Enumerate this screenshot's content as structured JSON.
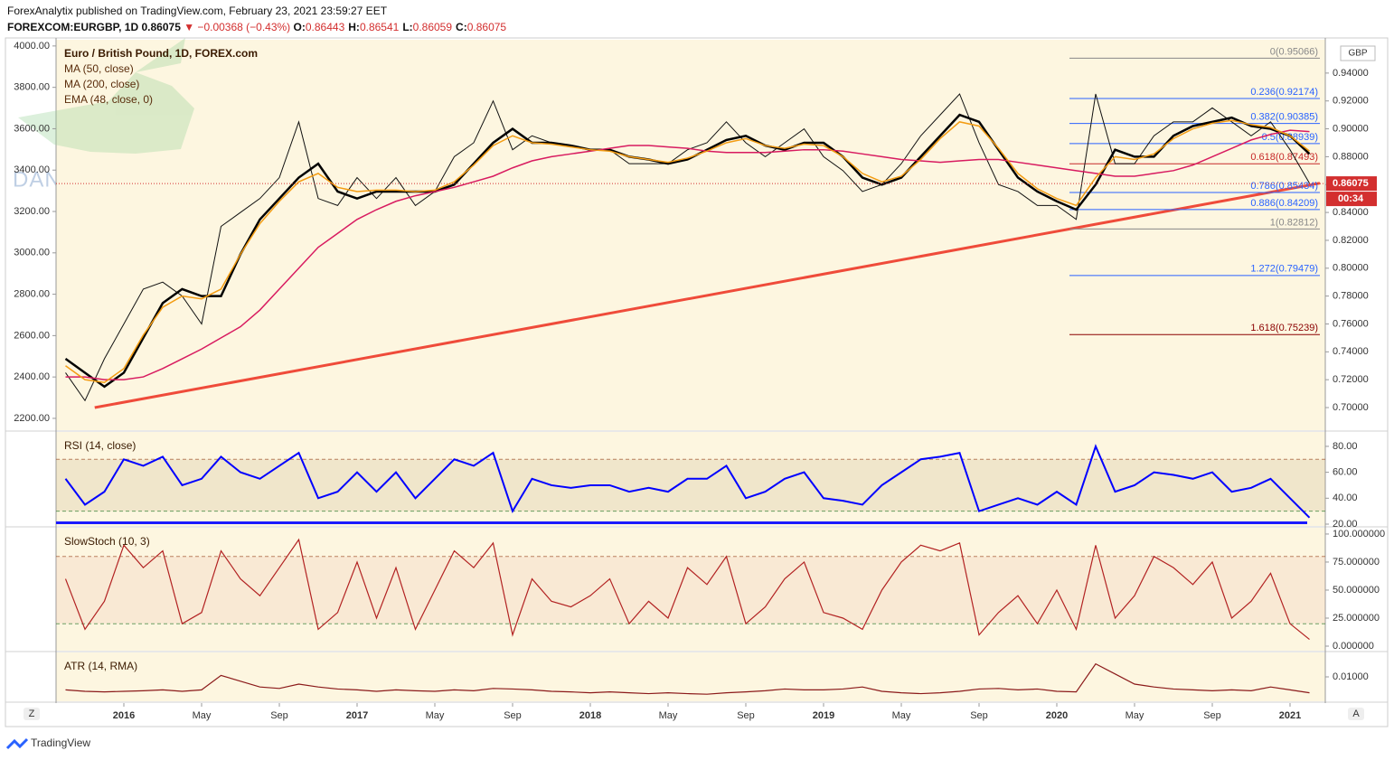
{
  "header": {
    "publisher": "ForexAnalytix published on TradingView.com, February 23, 2021 23:59:27 EET",
    "symbol": "FOREXCOM:EURGBP, 1D",
    "last": "0.86075",
    "change": "▼ −0.00368 (−0.43%)",
    "ohlc": [
      [
        "O:",
        "0.86443"
      ],
      [
        "H:",
        "0.86541"
      ],
      [
        "L:",
        "0.86059"
      ],
      [
        "C:",
        "0.86075"
      ]
    ]
  },
  "watermark": "DANHGIASAN.COM",
  "footer": {
    "brand": "TradingView",
    "left_button": "Z",
    "right_button": "A"
  },
  "chart_data": [
    {
      "type": "line",
      "title": "Euro / British Pound, 1D, FOREX.com",
      "axis_unit": "GBP",
      "categories": [
        null,
        null,
        null,
        "2016",
        null,
        null,
        null,
        "May",
        null,
        null,
        null,
        "Sep",
        null,
        null,
        null,
        "2017",
        null,
        null,
        null,
        "May",
        null,
        null,
        null,
        "Sep",
        null,
        null,
        null,
        "2018",
        null,
        null,
        null,
        "May",
        null,
        null,
        null,
        "Sep",
        null,
        null,
        null,
        "2019",
        null,
        null,
        null,
        "May",
        null,
        null,
        null,
        "Sep",
        null,
        null,
        null,
        "2020",
        null,
        null,
        null,
        "May",
        null,
        null,
        null,
        "Sep",
        null,
        null,
        null,
        "2021",
        null
      ],
      "values": [
        0.725,
        0.705,
        0.735,
        0.76,
        0.785,
        0.79,
        0.78,
        0.76,
        0.83,
        0.84,
        0.85,
        0.865,
        0.905,
        0.85,
        0.845,
        0.865,
        0.85,
        0.865,
        0.845,
        0.855,
        0.88,
        0.89,
        0.92,
        0.885,
        0.895,
        0.89,
        0.888,
        0.885,
        0.885,
        0.875,
        0.875,
        0.875,
        0.885,
        0.89,
        0.905,
        0.89,
        0.88,
        0.89,
        0.9,
        0.88,
        0.87,
        0.855,
        0.86,
        0.875,
        0.895,
        0.91,
        0.925,
        0.89,
        0.86,
        0.855,
        0.845,
        0.845,
        0.835,
        0.925,
        0.875,
        0.875,
        0.895,
        0.905,
        0.905,
        0.915,
        0.905,
        0.895,
        0.905,
        0.885,
        0.861
      ],
      "color": "#111111",
      "series": [
        {
          "name": "MA (50, close)",
          "color": "#000000",
          "width": 2.5,
          "values": [
            0.735,
            0.725,
            0.715,
            0.725,
            0.75,
            0.775,
            0.785,
            0.78,
            0.78,
            0.81,
            0.835,
            0.85,
            0.865,
            0.875,
            0.855,
            0.85,
            0.855,
            0.855,
            0.855,
            0.855,
            0.86,
            0.875,
            0.89,
            0.9,
            0.89,
            0.89,
            0.888,
            0.885,
            0.885,
            0.88,
            0.878,
            0.875,
            0.878,
            0.885,
            0.892,
            0.895,
            0.888,
            0.885,
            0.89,
            0.89,
            0.88,
            0.865,
            0.86,
            0.865,
            0.88,
            0.895,
            0.91,
            0.905,
            0.885,
            0.865,
            0.855,
            0.848,
            0.842,
            0.86,
            0.885,
            0.88,
            0.88,
            0.895,
            0.902,
            0.905,
            0.908,
            0.902,
            0.9,
            0.895,
            0.882
          ]
        },
        {
          "name": "MA (200, close)",
          "color": "#d81b60",
          "width": 1.5,
          "values": [
            0.722,
            0.722,
            0.72,
            0.72,
            0.722,
            0.728,
            0.735,
            0.742,
            0.75,
            0.758,
            0.77,
            0.785,
            0.8,
            0.815,
            0.825,
            0.835,
            0.842,
            0.848,
            0.852,
            0.855,
            0.858,
            0.862,
            0.866,
            0.872,
            0.877,
            0.88,
            0.882,
            0.884,
            0.886,
            0.888,
            0.888,
            0.887,
            0.886,
            0.884,
            0.883,
            0.883,
            0.883,
            0.884,
            0.885,
            0.885,
            0.884,
            0.882,
            0.88,
            0.878,
            0.877,
            0.876,
            0.877,
            0.878,
            0.878,
            0.876,
            0.874,
            0.872,
            0.87,
            0.868,
            0.866,
            0.866,
            0.868,
            0.87,
            0.874,
            0.88,
            0.886,
            0.892,
            0.896,
            0.899,
            0.898
          ]
        },
        {
          "name": "EMA (48, close, 0)",
          "color": "#f39c12",
          "width": 1.5,
          "values": [
            0.73,
            0.72,
            0.718,
            0.728,
            0.752,
            0.772,
            0.78,
            0.778,
            0.785,
            0.81,
            0.832,
            0.848,
            0.862,
            0.868,
            0.858,
            0.855,
            0.856,
            0.856,
            0.855,
            0.856,
            0.862,
            0.874,
            0.888,
            0.895,
            0.89,
            0.889,
            0.887,
            0.885,
            0.884,
            0.88,
            0.878,
            0.876,
            0.879,
            0.884,
            0.89,
            0.893,
            0.888,
            0.886,
            0.889,
            0.888,
            0.88,
            0.868,
            0.862,
            0.866,
            0.878,
            0.893,
            0.905,
            0.902,
            0.886,
            0.868,
            0.857,
            0.85,
            0.845,
            0.865,
            0.88,
            0.878,
            0.882,
            0.893,
            0.9,
            0.904,
            0.906,
            0.903,
            0.901,
            0.895,
            0.884
          ]
        }
      ],
      "ylim": [
        0.6838,
        0.9639
      ],
      "yticks": [
        {
          "value": 0.7,
          "label": "0.70000"
        },
        {
          "value": 0.72,
          "label": "0.72000"
        },
        {
          "value": 0.74,
          "label": "0.74000"
        },
        {
          "value": 0.76,
          "label": "0.76000"
        },
        {
          "value": 0.78,
          "label": "0.78000"
        },
        {
          "value": 0.8,
          "label": "0.80000"
        },
        {
          "value": 0.82,
          "label": "0.82000"
        },
        {
          "value": 0.84,
          "label": "0.84000"
        },
        {
          "value": 0.86,
          "label": "0.86000"
        },
        {
          "value": 0.88,
          "label": "0.88000"
        },
        {
          "value": 0.9,
          "label": "0.90000"
        },
        {
          "value": 0.92,
          "label": "0.92000"
        },
        {
          "value": 0.94,
          "label": "0.94000"
        }
      ],
      "y2lim": [
        2143,
        4030
      ],
      "y2ticks": [
        {
          "value": 2200,
          "label": "2200.00"
        },
        {
          "value": 2400,
          "label": "2400.00"
        },
        {
          "value": 2600,
          "label": "2600.00"
        },
        {
          "value": 2800,
          "label": "2800.00"
        },
        {
          "value": 3000,
          "label": "3000.00"
        },
        {
          "value": 3200,
          "label": "3200.00"
        },
        {
          "value": 3400,
          "label": "3400.00"
        },
        {
          "value": 3600,
          "label": "3600.00"
        },
        {
          "value": 3800,
          "label": "3800.00"
        },
        {
          "value": 4000,
          "label": "4000.00"
        }
      ],
      "fib_levels": [
        {
          "label": "0(0.95066)",
          "value": 0.95066,
          "color": "#888888"
        },
        {
          "label": "0.236(0.92174)",
          "value": 0.92174,
          "color": "#2962ff"
        },
        {
          "label": "0.382(0.90385)",
          "value": 0.90385,
          "color": "#2962ff"
        },
        {
          "label": "0.5(0.88939)",
          "value": 0.88939,
          "color": "#2962ff"
        },
        {
          "label": "0.618(0.87493)",
          "value": 0.87493,
          "color": "#c62828"
        },
        {
          "label": "0.786(0.85434)",
          "value": 0.85434,
          "color": "#2962ff"
        },
        {
          "label": "0.886(0.84209)",
          "value": 0.84209,
          "color": "#2962ff"
        },
        {
          "label": "1(0.82812)",
          "value": 0.82812,
          "color": "#888888"
        },
        {
          "label": "1.272(0.79479)",
          "value": 0.79479,
          "color": "#2962ff"
        },
        {
          "label": "1.618(0.75239)",
          "value": 0.75239,
          "color": "#8b0000"
        }
      ],
      "trendline": {
        "from": 0.7,
        "to": 0.861,
        "color": "#ef4b3a"
      },
      "last_price": {
        "label": "0.86075",
        "value": 0.86075,
        "countdown": "00:34",
        "color": "#d32f2f"
      }
    },
    {
      "type": "line",
      "title": "RSI (14, close)",
      "color": "#0000ff",
      "values": [
        55,
        35,
        45,
        70,
        65,
        72,
        50,
        55,
        72,
        60,
        55,
        65,
        75,
        40,
        45,
        60,
        45,
        60,
        40,
        55,
        70,
        65,
        75,
        30,
        55,
        50,
        48,
        50,
        50,
        45,
        48,
        45,
        55,
        55,
        65,
        40,
        45,
        55,
        60,
        40,
        38,
        35,
        50,
        60,
        70,
        72,
        75,
        30,
        35,
        40,
        35,
        45,
        35,
        80,
        45,
        50,
        60,
        58,
        55,
        60,
        45,
        48,
        55,
        40,
        25
      ],
      "ylim": [
        18.6,
        91.1
      ],
      "yticks": [
        {
          "value": 20,
          "label": "20.00"
        },
        {
          "value": 40,
          "label": "40.00"
        },
        {
          "value": 60,
          "label": "60.00"
        },
        {
          "value": 80,
          "label": "80.00"
        }
      ],
      "bands": [
        70,
        30
      ],
      "band_color": "#b8a070",
      "level": 21
    },
    {
      "type": "line",
      "title": "SlowStoch (10, 3)",
      "color": "#b22222",
      "values": [
        60,
        15,
        40,
        90,
        70,
        85,
        20,
        30,
        85,
        60,
        45,
        70,
        95,
        15,
        30,
        75,
        25,
        70,
        15,
        50,
        85,
        70,
        92,
        10,
        60,
        40,
        35,
        45,
        60,
        20,
        40,
        25,
        70,
        55,
        80,
        20,
        35,
        60,
        75,
        30,
        25,
        15,
        50,
        75,
        90,
        85,
        92,
        10,
        30,
        45,
        20,
        50,
        15,
        90,
        25,
        45,
        80,
        70,
        55,
        75,
        25,
        40,
        65,
        20,
        6
      ],
      "ylim": [
        -4.03,
        105.6
      ],
      "yticks": [
        {
          "value": 0,
          "label": "0.000000"
        },
        {
          "value": 25,
          "label": "25.000000"
        },
        {
          "value": 50,
          "label": "50.000000"
        },
        {
          "value": 75,
          "label": "75.000000"
        },
        {
          "value": 100,
          "label": "100.000000"
        }
      ],
      "bands": [
        80,
        20
      ],
      "band_color": "#e8b0a0"
    },
    {
      "type": "line",
      "title": "ATR (14, RMA)",
      "color": "#8b1a1a",
      "values": [
        0.0055,
        0.005,
        0.0048,
        0.005,
        0.0052,
        0.0055,
        0.005,
        0.0055,
        0.0105,
        0.0085,
        0.0065,
        0.006,
        0.0075,
        0.0065,
        0.0058,
        0.0055,
        0.005,
        0.0055,
        0.0052,
        0.005,
        0.0055,
        0.0052,
        0.006,
        0.0058,
        0.0055,
        0.005,
        0.0048,
        0.0045,
        0.0048,
        0.0045,
        0.0042,
        0.0045,
        0.0042,
        0.004,
        0.0045,
        0.0048,
        0.0052,
        0.0058,
        0.0055,
        0.0055,
        0.0058,
        0.0065,
        0.005,
        0.0045,
        0.0042,
        0.0045,
        0.005,
        0.0058,
        0.006,
        0.0055,
        0.0058,
        0.005,
        0.0048,
        0.0145,
        0.011,
        0.0075,
        0.0065,
        0.0058,
        0.0055,
        0.0052,
        0.0055,
        0.0052,
        0.0065,
        0.0055,
        0.0045
      ],
      "ylim": [
        0.00156,
        0.01844
      ],
      "yticks": [
        {
          "value": 0.01,
          "label": "0.01000"
        }
      ]
    }
  ]
}
